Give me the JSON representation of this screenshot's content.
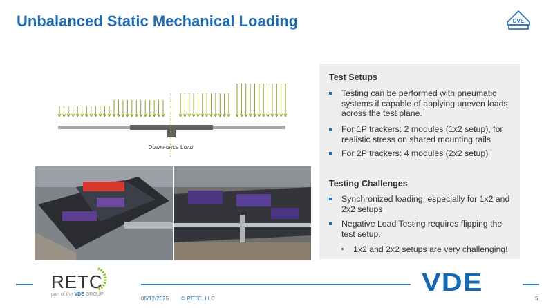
{
  "title": "Unbalanced Static Mechanical Loading",
  "diagram": {
    "label": "Downforce Load",
    "arrow_color": "#8aa22a"
  },
  "panel": {
    "setups_heading": "Test Setups",
    "setups": [
      "Testing can be performed with pneumatic systems if capable of applying uneven loads across the test plane.",
      "For 1P trackers: 2 modules (1x2 setup), for realistic stress on shared mounting rails",
      "For 2P trackers: 4 modules (2x2 setup)"
    ],
    "challenges_heading": "Testing Challenges",
    "challenges": [
      "Synchronized loading, especially for 1x2 and 2x2 setups",
      "Negative Load Testing requires flipping the test setup."
    ],
    "sub_bullet": "1x2 and 2x2 setups are very challenging!"
  },
  "footer": {
    "logo_text": "RETC",
    "logo_tagline_pre": "part of the",
    "logo_tagline_brand": "VDE",
    "logo_tagline_post": "GROUP",
    "date": "05/12/2025",
    "copyright": "© RETC, LLC",
    "brand": "VDE",
    "page": "5",
    "accent": "#1f6db4"
  },
  "badge": {
    "letters": "DVE"
  }
}
